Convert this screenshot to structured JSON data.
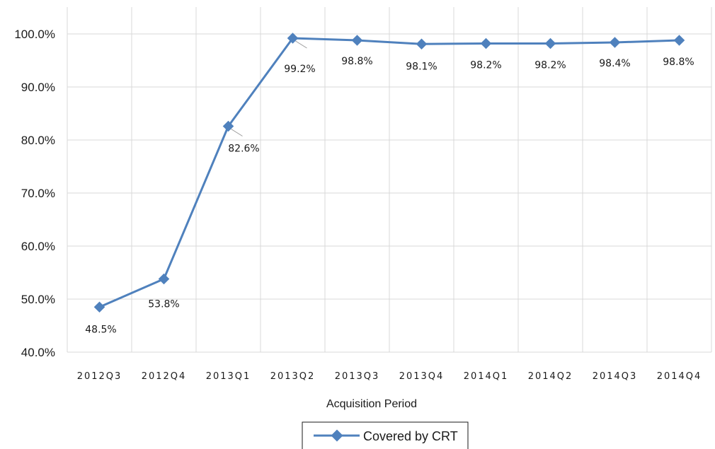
{
  "chart_data": {
    "type": "line",
    "categories": [
      "2012Q3",
      "2012Q4",
      "2013Q1",
      "2013Q2",
      "2013Q3",
      "2013Q4",
      "2014Q1",
      "2014Q2",
      "2014Q3",
      "2014Q4"
    ],
    "series": [
      {
        "name": "Covered by CRT",
        "values": [
          48.5,
          53.8,
          82.6,
          99.2,
          98.8,
          98.1,
          98.2,
          98.2,
          98.4,
          98.8
        ],
        "labels": [
          "48.5%",
          "53.8%",
          "82.6%",
          "99.2%",
          "98.8%",
          "98.1%",
          "98.2%",
          "98.2%",
          "98.4%",
          "98.8%"
        ],
        "color": "#4f81bd"
      }
    ],
    "xlabel": "Acquisition Period",
    "ylabel": "",
    "ylim": [
      40,
      100
    ],
    "yticks": [
      "40.0%",
      "50.0%",
      "60.0%",
      "70.0%",
      "80.0%",
      "90.0%",
      "100.0%"
    ],
    "grid": true,
    "gridColor": "#d9d9d9",
    "legend": "bottom-center"
  }
}
